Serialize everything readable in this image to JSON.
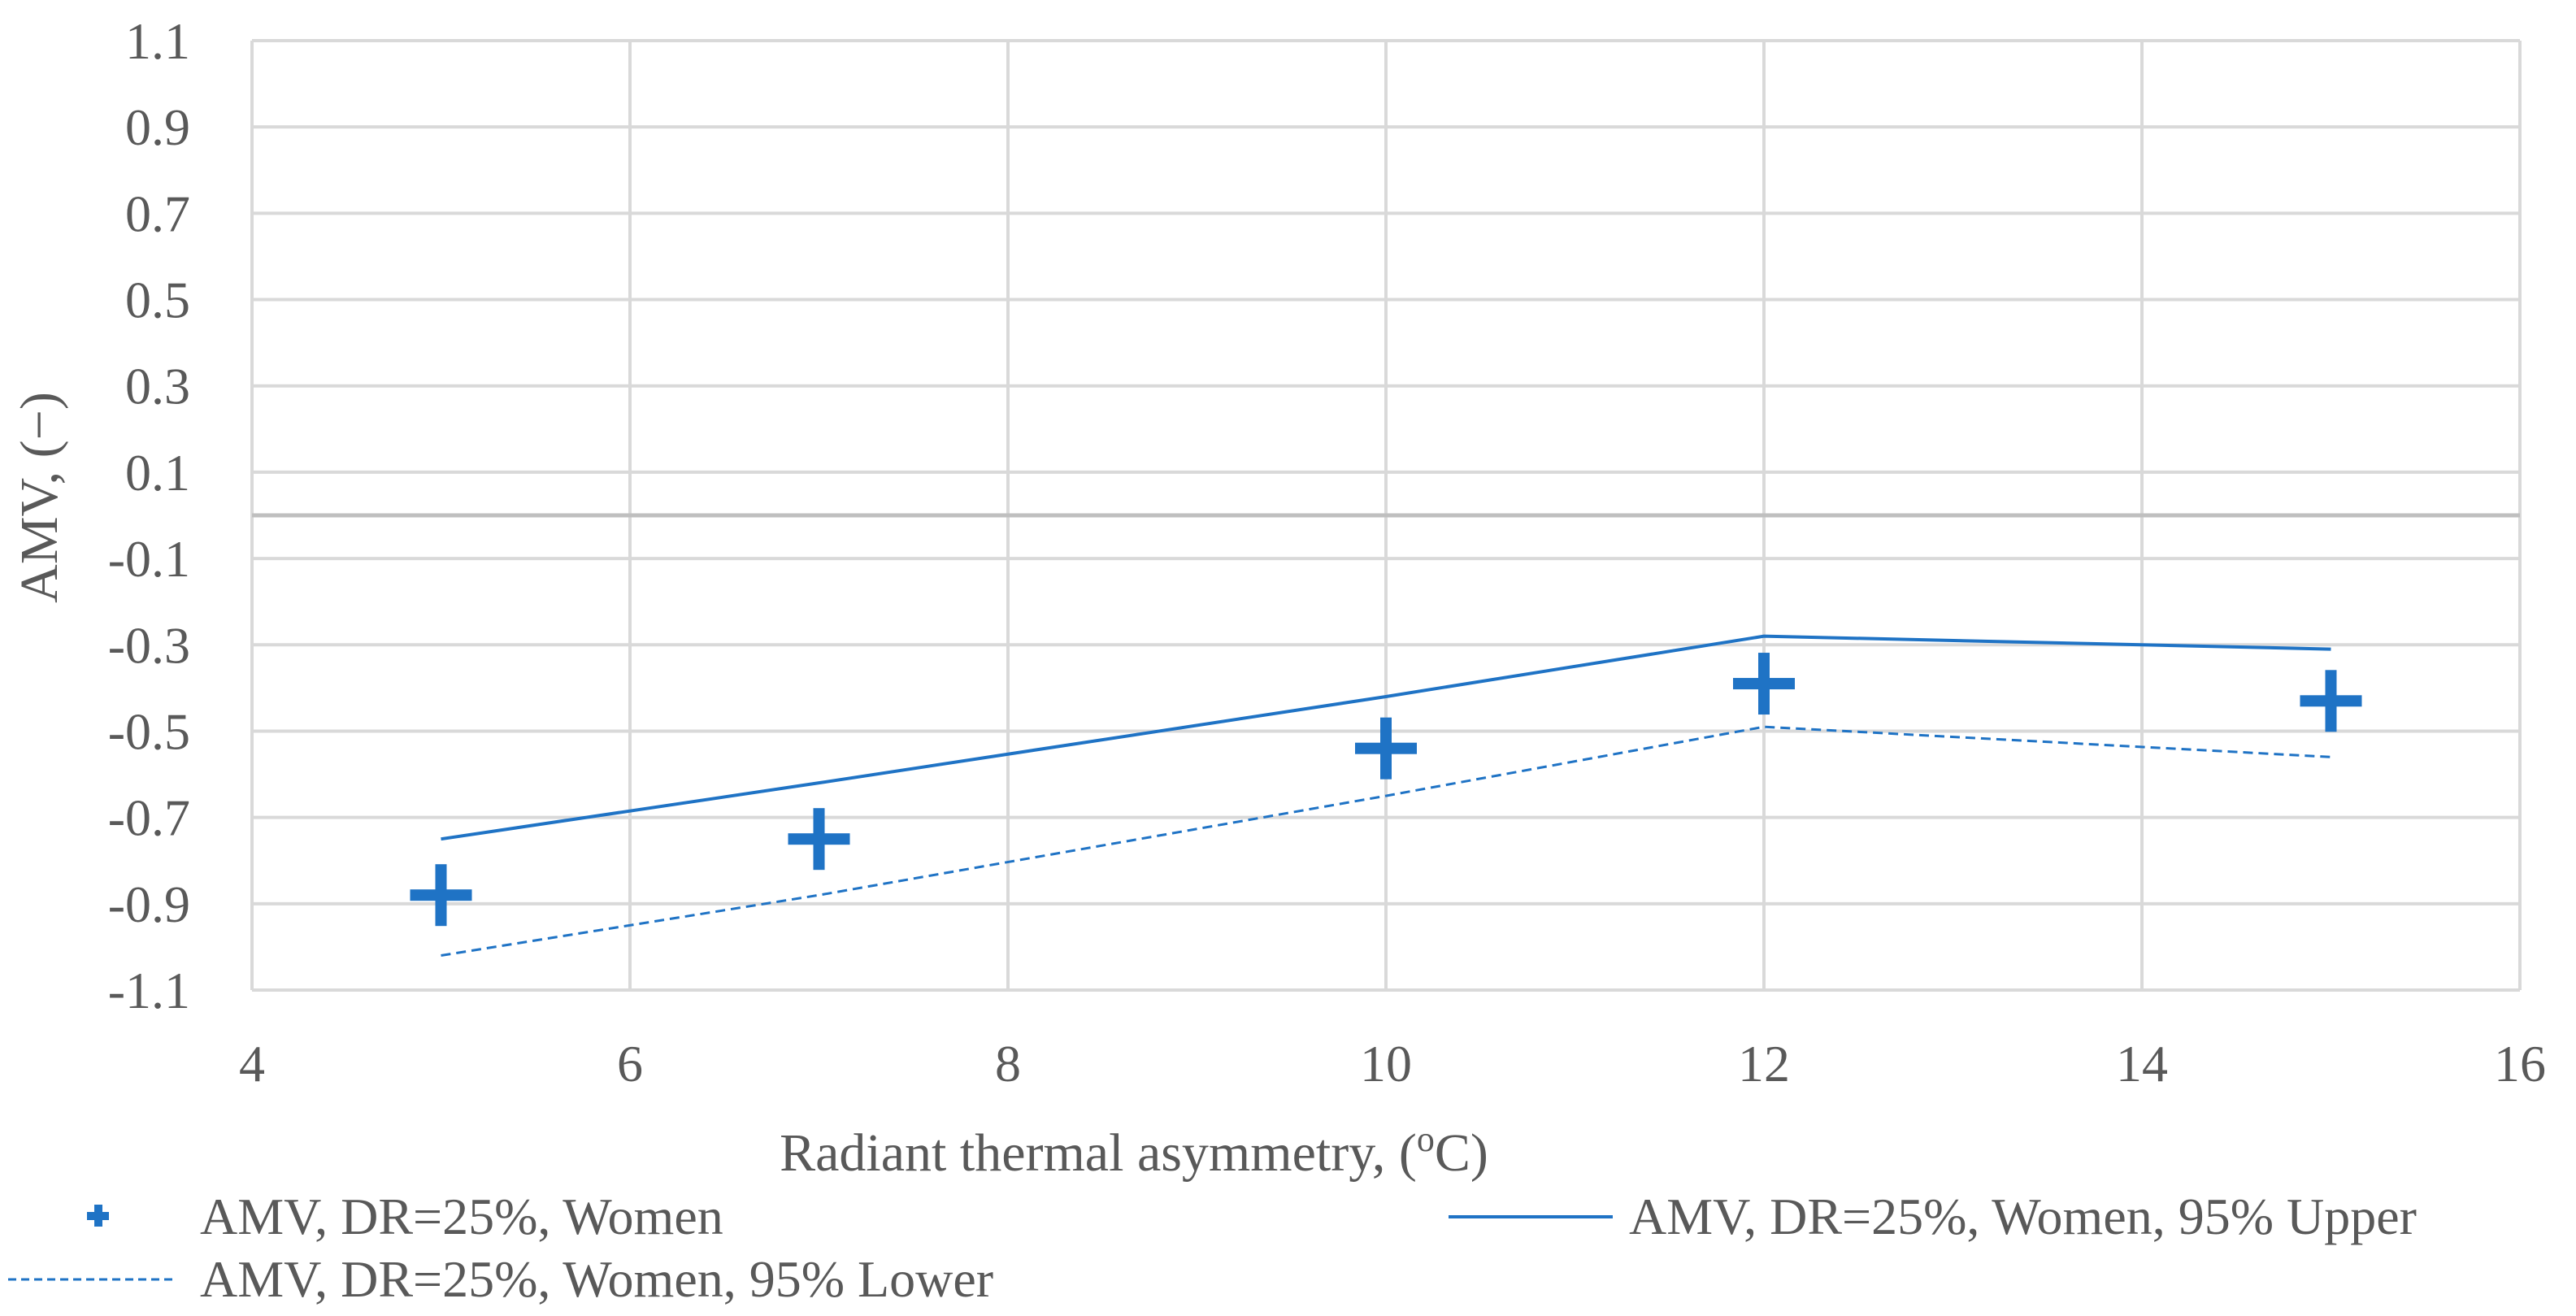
{
  "chart_data": {
    "type": "scatter",
    "title": "",
    "xlabel": "Radiant thermal asymmetry, (",
    "xlabel_sup": "o",
    "xlabel_suffix": "C)",
    "ylabel": "AMV, (−)",
    "xlim": [
      4,
      16
    ],
    "ylim": [
      -1.1,
      1.1
    ],
    "xticks": [
      4,
      6,
      8,
      10,
      12,
      14,
      16
    ],
    "yticks": [
      1.1,
      0.9,
      0.7,
      0.5,
      0.3,
      0.1,
      -0.1,
      -0.3,
      -0.5,
      -0.7,
      -0.9,
      -1.1
    ],
    "ytick_labels": [
      "1.1",
      "0.9",
      "0.7",
      "0.5",
      "0.3",
      "0.1",
      "-0.1",
      "-0.3",
      "-0.5",
      "-0.7",
      "-0.9",
      "-1.1"
    ],
    "grid": true,
    "zero_line": 0,
    "series": [
      {
        "name": "AMV, DR=25%, Women",
        "kind": "marker",
        "marker": "plus",
        "color": "#1F73C5",
        "x": [
          5,
          7,
          10,
          12,
          15
        ],
        "y": [
          -0.88,
          -0.75,
          -0.54,
          -0.39,
          -0.43
        ]
      },
      {
        "name": "AMV, DR=25%, Women, 95% Upper",
        "kind": "line",
        "dash": "solid",
        "color": "#1F73C5",
        "x": [
          5,
          7,
          10,
          12,
          15
        ],
        "y": [
          -0.75,
          -0.62,
          -0.42,
          -0.28,
          -0.31
        ]
      },
      {
        "name": "AMV, DR=25%, Women, 95% Lower",
        "kind": "line",
        "dash": "dashed",
        "color": "#1F73C5",
        "x": [
          5,
          7,
          10,
          12,
          15
        ],
        "y": [
          -1.02,
          -0.88,
          -0.65,
          -0.49,
          -0.56
        ]
      }
    ],
    "legend_position": "bottom"
  }
}
